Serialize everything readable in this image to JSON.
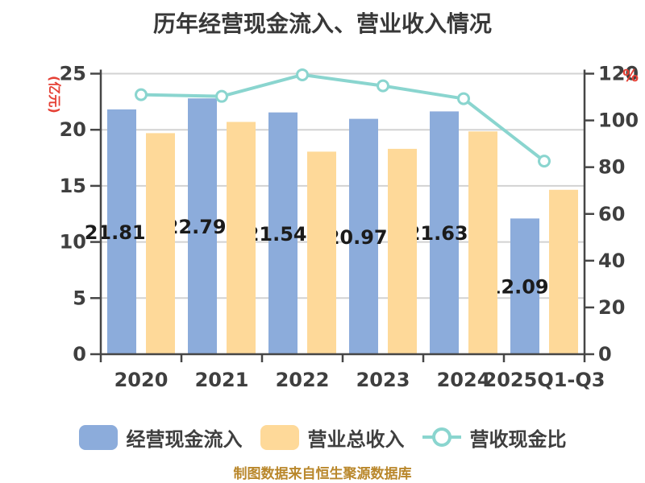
{
  "title": "历年经营现金流入、营业收入情况",
  "footer": "制图数据来自恒生聚源数据库",
  "chart_data": {
    "type": "bar",
    "subtype": "grouped-bar-with-line-combo",
    "categories": [
      "2020",
      "2021",
      "2022",
      "2023",
      "2024",
      "2025Q1-Q3"
    ],
    "series": [
      {
        "name": "经营现金流入",
        "type": "bar",
        "axis": "left",
        "color": "#8CACDB",
        "values": [
          21.815,
          22.797,
          21.546,
          20.975,
          21.636,
          12.095
        ],
        "data_labels": [
          "21.815",
          "22.797",
          "21.546",
          "20.975",
          "21.636",
          "12.095"
        ]
      },
      {
        "name": "营业总收入",
        "type": "bar",
        "axis": "left",
        "color": "#FED999",
        "values": [
          19.7,
          20.7,
          18.05,
          18.3,
          19.85,
          14.65
        ]
      },
      {
        "name": "营收现金比",
        "type": "line",
        "axis": "right",
        "color": "#8AD5CF",
        "marker": "circle-white-fill",
        "values": [
          111.0,
          110.3,
          119.5,
          114.8,
          109.3,
          82.6
        ]
      }
    ],
    "left_axis": {
      "label": "(亿元)",
      "min": 0,
      "max": 25,
      "step": 5,
      "ticks": [
        0,
        5,
        10,
        15,
        20,
        25
      ]
    },
    "right_axis": {
      "label": "%",
      "min": 0,
      "max": 120,
      "step": 20,
      "ticks": [
        0,
        20,
        40,
        60,
        80,
        100,
        120
      ]
    },
    "grid": true,
    "legend_position": "bottom",
    "colors": {
      "axis": "#464646",
      "grid": "#D2D2D2",
      "tick_text": "#3F3F3F",
      "bar_label": "#1B1B1B",
      "title": "#383838",
      "axis_unit": "#E54035",
      "footer": "#B9872B",
      "marker_fill": "#FFFFFF",
      "background": "#FFFFFF"
    }
  }
}
